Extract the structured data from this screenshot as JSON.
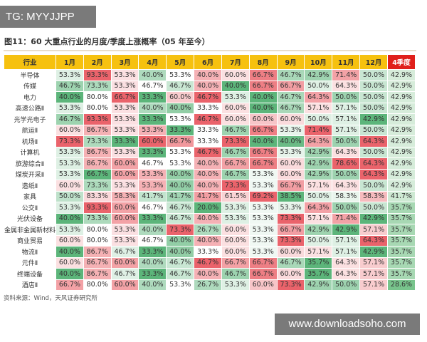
{
  "watermark_top": "TG: MYYJJPP",
  "watermark_bottom": "www.downloadsoho.com",
  "title": "图11：60 大重点行业的月度/季度上涨概率（05 年至今）",
  "source": "资料来源：Wind，天风证券研究所",
  "colors": {
    "header": "#f6c10f",
    "q4_header": "#e0201b",
    "high": "#e8525a",
    "low": "#3fa862"
  },
  "table": {
    "headers": [
      "行业",
      "1月",
      "2月",
      "3月",
      "4月",
      "5月",
      "6月",
      "7月",
      "8月",
      "9月",
      "10月",
      "11月",
      "12月",
      "4季度"
    ],
    "rows": [
      [
        "半导体",
        "53.3%",
        "93.3%",
        "53.3%",
        "40.0%",
        "53.3%",
        "40.0%",
        "60.0%",
        "66.7%",
        "46.7%",
        "42.9%",
        "71.4%",
        "50.0%",
        "42.9%"
      ],
      [
        "传媒",
        "46.7%",
        "73.3%",
        "53.3%",
        "46.7%",
        "46.7%",
        "40.0%",
        "40.0%",
        "66.7%",
        "66.7%",
        "50.0%",
        "64.3%",
        "50.0%",
        "42.9%"
      ],
      [
        "电力",
        "40.0%",
        "80.0%",
        "66.7%",
        "33.3%",
        "60.0%",
        "46.7%",
        "53.3%",
        "40.0%",
        "46.7%",
        "64.3%",
        "50.0%",
        "50.0%",
        "42.9%"
      ],
      [
        "高速公路Ⅱ",
        "53.3%",
        "80.0%",
        "53.3%",
        "40.0%",
        "40.0%",
        "33.3%",
        "60.0%",
        "40.0%",
        "46.7%",
        "57.1%",
        "57.1%",
        "50.0%",
        "42.9%"
      ],
      [
        "光学光电子",
        "46.7%",
        "93.3%",
        "53.3%",
        "33.3%",
        "53.3%",
        "46.7%",
        "60.0%",
        "60.0%",
        "60.0%",
        "50.0%",
        "57.1%",
        "42.9%",
        "42.9%"
      ],
      [
        "航运Ⅱ",
        "60.0%",
        "86.7%",
        "53.3%",
        "53.3%",
        "33.3%",
        "33.3%",
        "46.7%",
        "66.7%",
        "53.3%",
        "71.4%",
        "57.1%",
        "50.0%",
        "42.9%"
      ],
      [
        "机场Ⅱ",
        "73.3%",
        "73.3%",
        "33.3%",
        "60.0%",
        "66.7%",
        "33.3%",
        "73.3%",
        "40.0%",
        "40.0%",
        "64.3%",
        "50.0%",
        "64.3%",
        "42.9%"
      ],
      [
        "计算机",
        "53.3%",
        "86.7%",
        "53.3%",
        "33.3%",
        "53.3%",
        "46.7%",
        "46.7%",
        "66.7%",
        "53.3%",
        "42.9%",
        "64.3%",
        "50.0%",
        "42.9%"
      ],
      [
        "旅游综合Ⅱ",
        "53.3%",
        "86.7%",
        "60.0%",
        "46.7%",
        "53.3%",
        "40.0%",
        "66.7%",
        "66.7%",
        "60.0%",
        "42.9%",
        "78.6%",
        "64.3%",
        "42.9%"
      ],
      [
        "煤炭开采Ⅱ",
        "53.3%",
        "66.7%",
        "60.0%",
        "53.3%",
        "40.0%",
        "40.0%",
        "46.7%",
        "53.3%",
        "60.0%",
        "42.9%",
        "50.0%",
        "64.3%",
        "42.9%"
      ],
      [
        "造纸Ⅱ",
        "60.0%",
        "73.3%",
        "53.3%",
        "53.3%",
        "40.0%",
        "40.0%",
        "73.3%",
        "53.3%",
        "66.7%",
        "57.1%",
        "64.3%",
        "50.0%",
        "42.9%"
      ],
      [
        "家具",
        "50.0%",
        "83.3%",
        "58.3%",
        "41.7%",
        "41.7%",
        "41.7%",
        "61.5%",
        "69.2%",
        "38.5%",
        "50.0%",
        "58.3%",
        "58.3%",
        "41.7%"
      ],
      [
        "公交Ⅱ",
        "53.3%",
        "93.3%",
        "60.0%",
        "46.7%",
        "46.7%",
        "20.0%",
        "53.3%",
        "53.3%",
        "53.3%",
        "64.3%",
        "50.0%",
        "50.0%",
        "35.7%"
      ],
      [
        "光伏设备",
        "40.0%",
        "73.3%",
        "60.0%",
        "33.3%",
        "46.7%",
        "40.0%",
        "53.3%",
        "53.3%",
        "73.3%",
        "57.1%",
        "71.4%",
        "42.9%",
        "35.7%"
      ],
      [
        "金属非金属新材料",
        "53.3%",
        "80.0%",
        "53.3%",
        "40.0%",
        "73.3%",
        "26.7%",
        "60.0%",
        "53.3%",
        "66.7%",
        "42.9%",
        "42.9%",
        "57.1%",
        "35.7%"
      ],
      [
        "商业贸易",
        "60.0%",
        "80.0%",
        "53.3%",
        "46.7%",
        "40.0%",
        "40.0%",
        "60.0%",
        "53.3%",
        "73.3%",
        "50.0%",
        "57.1%",
        "64.3%",
        "35.7%"
      ],
      [
        "物流Ⅱ",
        "40.0%",
        "86.7%",
        "46.7%",
        "33.3%",
        "40.0%",
        "33.3%",
        "60.0%",
        "53.3%",
        "60.0%",
        "57.1%",
        "57.1%",
        "42.9%",
        "35.7%"
      ],
      [
        "元件Ⅱ",
        "60.0%",
        "86.7%",
        "60.0%",
        "40.0%",
        "46.7%",
        "46.7%",
        "66.7%",
        "66.7%",
        "46.7%",
        "35.7%",
        "64.3%",
        "57.1%",
        "35.7%"
      ],
      [
        "终端设备",
        "40.0%",
        "86.7%",
        "46.7%",
        "33.3%",
        "46.7%",
        "40.0%",
        "46.7%",
        "66.7%",
        "60.0%",
        "35.7%",
        "64.3%",
        "57.1%",
        "35.7%"
      ],
      [
        "酒店Ⅱ",
        "66.7%",
        "80.0%",
        "60.0%",
        "40.0%",
        "53.3%",
        "26.7%",
        "53.3%",
        "60.0%",
        "73.3%",
        "42.9%",
        "50.0%",
        "57.1%",
        "28.6%"
      ]
    ]
  }
}
